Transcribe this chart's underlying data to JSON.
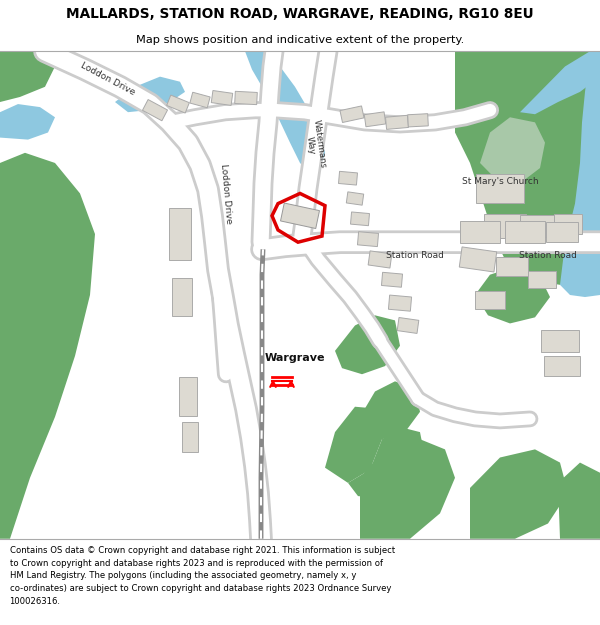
{
  "title": "MALLARDS, STATION ROAD, WARGRAVE, READING, RG10 8EU",
  "subtitle": "Map shows position and indicative extent of the property.",
  "footer": "Contains OS data © Crown copyright and database right 2021. This information is subject\nto Crown copyright and database rights 2023 and is reproduced with the permission of\nHM Land Registry. The polygons (including the associated geometry, namely x, y\nco-ordinates) are subject to Crown copyright and database rights 2023 Ordnance Survey\n100026316.",
  "bg_color": "#eeebe4",
  "road_color": "#ffffff",
  "road_outline_color": "#cccccc",
  "green_color": "#6aaa6a",
  "green_light_color": "#a8c8a8",
  "water_color": "#8ec8e0",
  "building_color": "#dddad2",
  "building_outline": "#aaaaaa",
  "highlight_color": "#dd0000",
  "panel_bg": "#ffffff"
}
